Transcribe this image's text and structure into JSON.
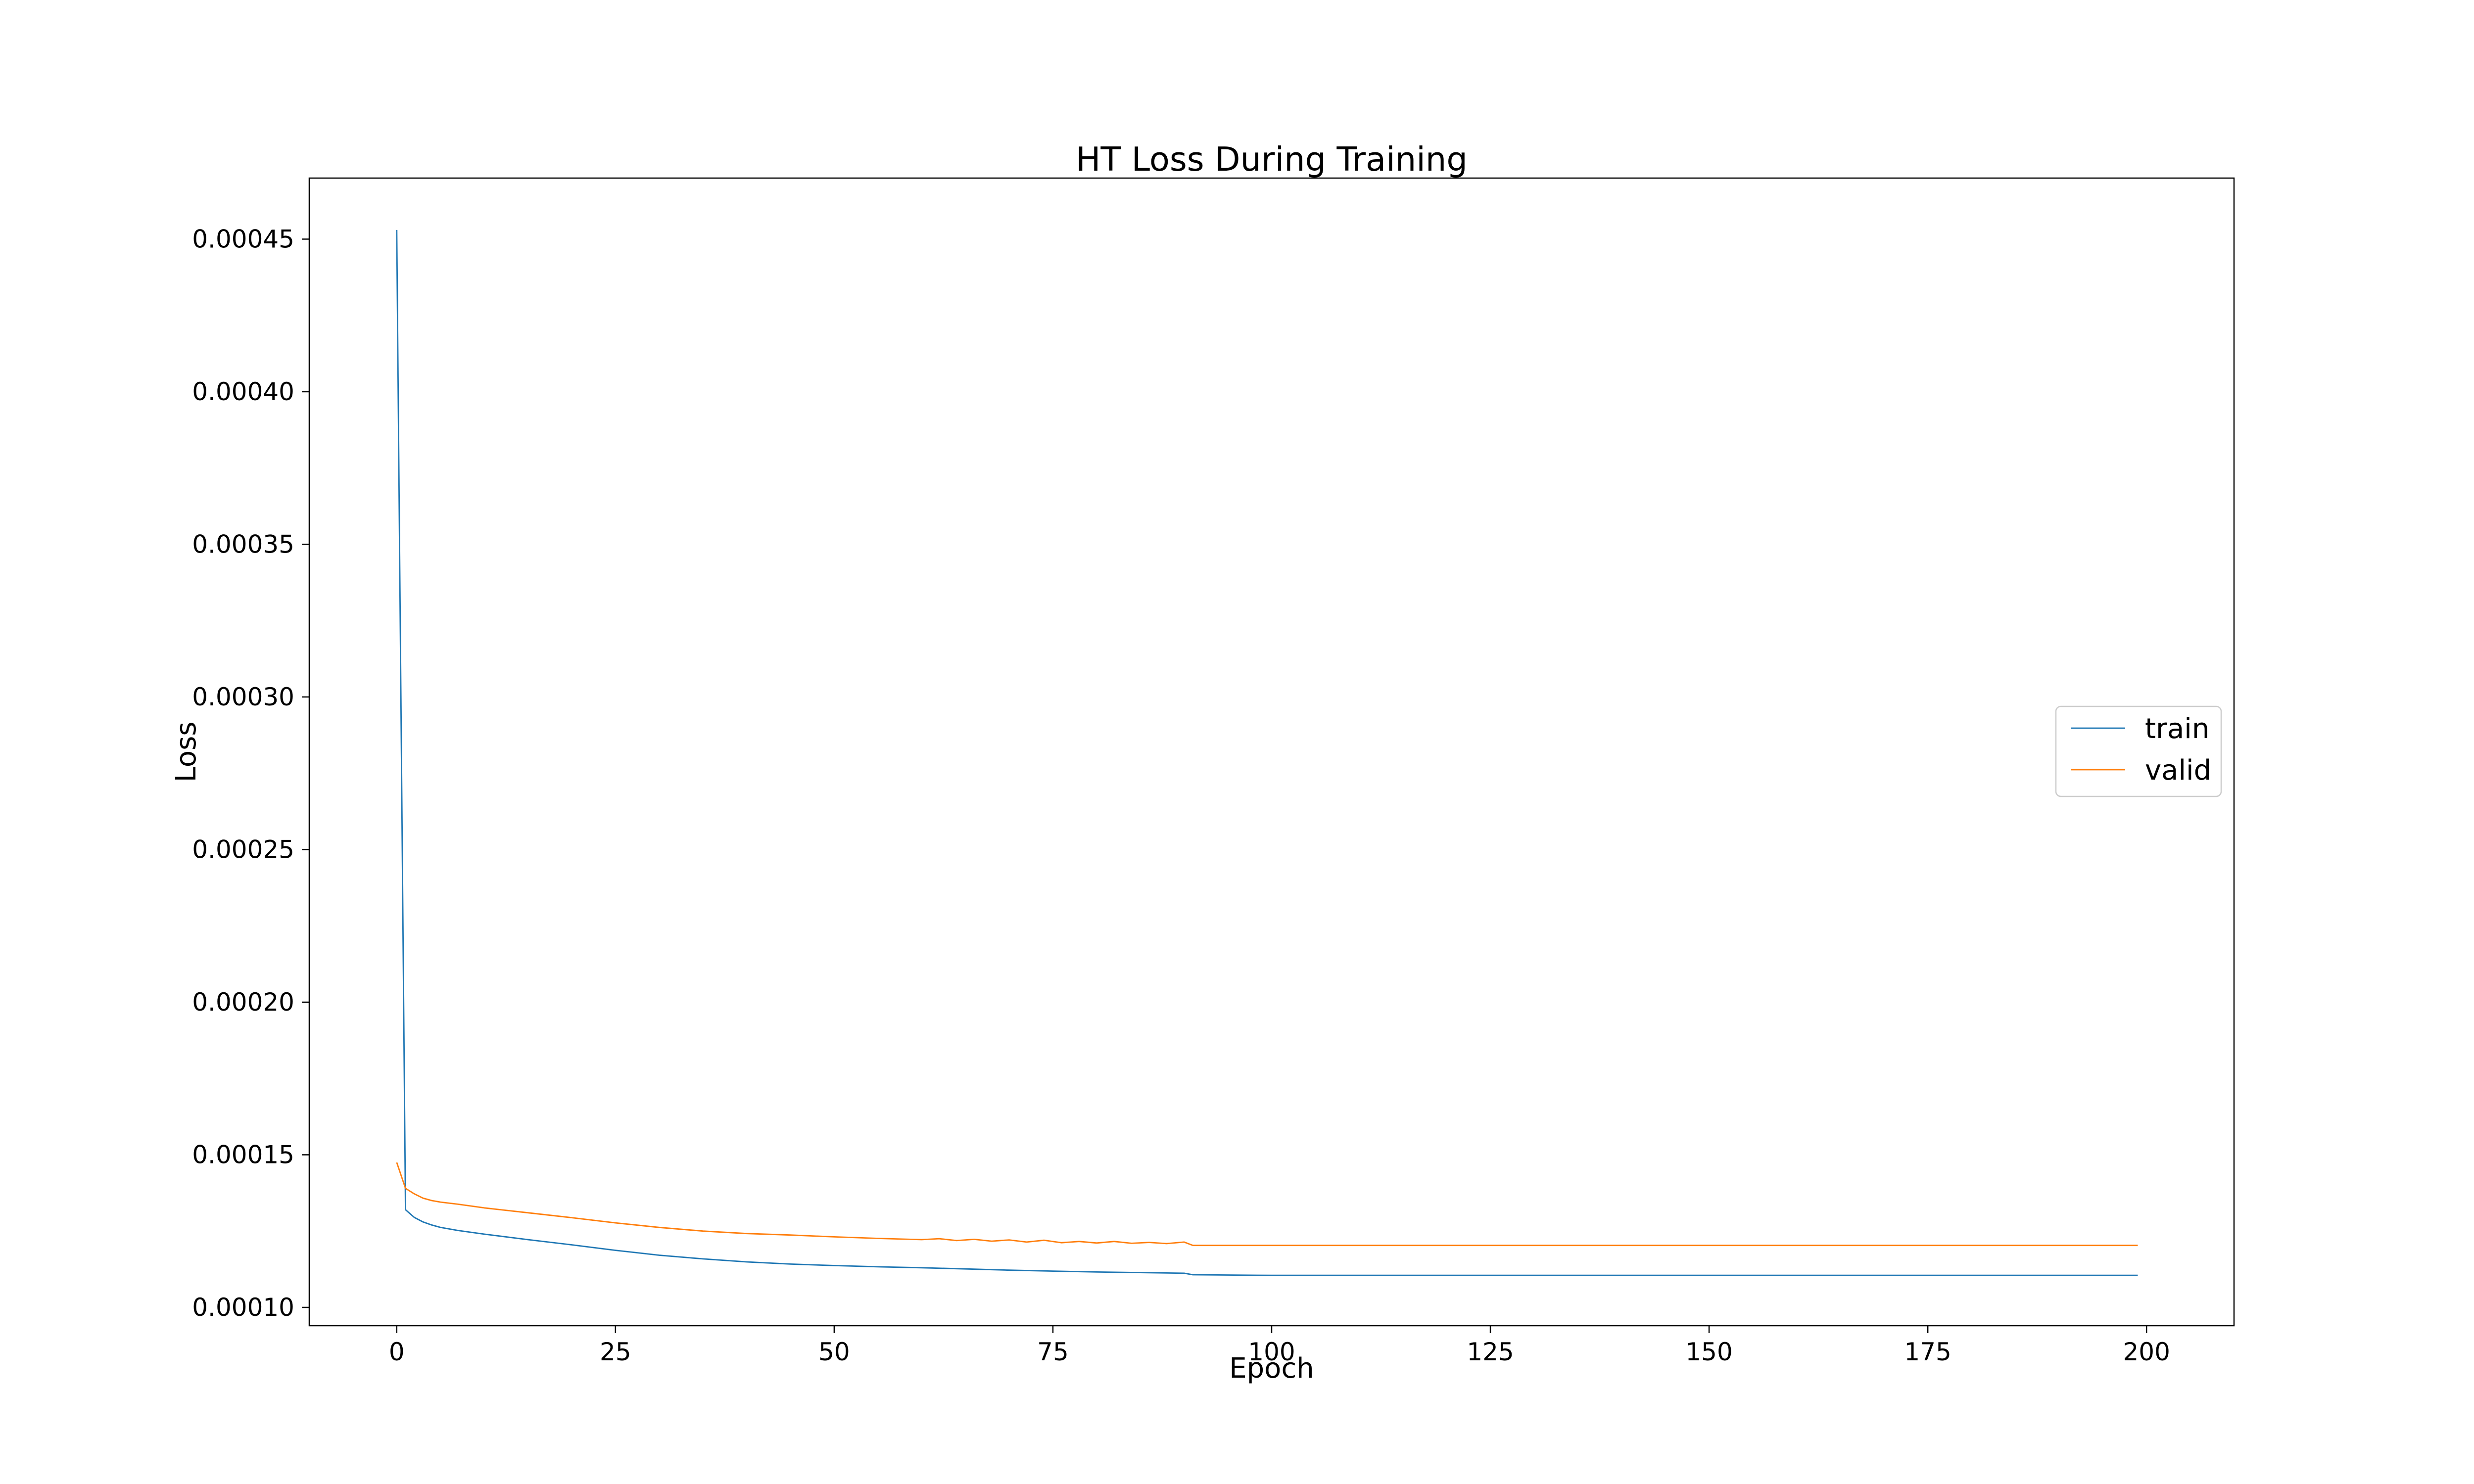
{
  "chart_data": {
    "type": "line",
    "title": "HT Loss During Training",
    "xlabel": "Epoch",
    "ylabel": "Loss",
    "xlim": [
      -10,
      210
    ],
    "ylim": [
      9.4e-05,
      0.00047
    ],
    "xticks": [
      0,
      25,
      50,
      75,
      100,
      125,
      150,
      175,
      200
    ],
    "xtick_labels": [
      "0",
      "25",
      "50",
      "75",
      "100",
      "125",
      "150",
      "175",
      "200"
    ],
    "yticks": [
      0.0001,
      0.00015,
      0.0002,
      0.00025,
      0.0003,
      0.00035,
      0.0004,
      0.00045
    ],
    "ytick_labels": [
      "0.00010",
      "0.00015",
      "0.00020",
      "0.00025",
      "0.00030",
      "0.00035",
      "0.00040",
      "0.00045"
    ],
    "grid": false,
    "legend": {
      "position": "center-right"
    },
    "series": [
      {
        "name": "train",
        "color": "#1f77b4",
        "points": [
          [
            0,
            0.000453
          ],
          [
            1,
            0.000132
          ],
          [
            2,
            0.0001295
          ],
          [
            3,
            0.000128
          ],
          [
            4,
            0.000127
          ],
          [
            5,
            0.0001262
          ],
          [
            7,
            0.0001252
          ],
          [
            10,
            0.000124
          ],
          [
            15,
            0.0001222
          ],
          [
            20,
            0.0001205
          ],
          [
            25,
            0.0001187
          ],
          [
            30,
            0.0001171
          ],
          [
            35,
            0.0001159
          ],
          [
            40,
            0.0001149
          ],
          [
            45,
            0.0001142
          ],
          [
            50,
            0.0001137
          ],
          [
            55,
            0.0001133
          ],
          [
            60,
            0.000113
          ],
          [
            65,
            0.0001126
          ],
          [
            70,
            0.0001122
          ],
          [
            75,
            0.0001119
          ],
          [
            80,
            0.0001116
          ],
          [
            85,
            0.0001114
          ],
          [
            90,
            0.0001112
          ],
          [
            91,
            0.0001107
          ],
          [
            100,
            0.0001105
          ],
          [
            110,
            0.0001105
          ],
          [
            150,
            0.0001105
          ],
          [
            199,
            0.0001105
          ]
        ]
      },
      {
        "name": "valid",
        "color": "#ff7f0e",
        "points": [
          [
            0,
            0.0001475
          ],
          [
            1,
            0.000139
          ],
          [
            2,
            0.0001372
          ],
          [
            3,
            0.0001358
          ],
          [
            4,
            0.000135
          ],
          [
            5,
            0.0001345
          ],
          [
            7,
            0.0001338
          ],
          [
            10,
            0.0001326
          ],
          [
            15,
            0.000131
          ],
          [
            20,
            0.0001294
          ],
          [
            25,
            0.0001277
          ],
          [
            30,
            0.0001262
          ],
          [
            35,
            0.000125
          ],
          [
            40,
            0.0001242
          ],
          [
            45,
            0.0001237
          ],
          [
            50,
            0.0001231
          ],
          [
            55,
            0.0001226
          ],
          [
            60,
            0.0001222
          ],
          [
            62,
            0.0001225
          ],
          [
            64,
            0.0001219
          ],
          [
            66,
            0.0001223
          ],
          [
            68,
            0.0001217
          ],
          [
            70,
            0.0001221
          ],
          [
            72,
            0.0001214
          ],
          [
            74,
            0.000122
          ],
          [
            76,
            0.0001212
          ],
          [
            78,
            0.0001216
          ],
          [
            80,
            0.0001211
          ],
          [
            82,
            0.0001216
          ],
          [
            84,
            0.000121
          ],
          [
            86,
            0.0001213
          ],
          [
            88,
            0.0001209
          ],
          [
            90,
            0.0001214
          ],
          [
            91,
            0.0001203
          ],
          [
            100,
            0.0001203
          ],
          [
            150,
            0.0001203
          ],
          [
            199,
            0.0001203
          ]
        ]
      }
    ]
  }
}
